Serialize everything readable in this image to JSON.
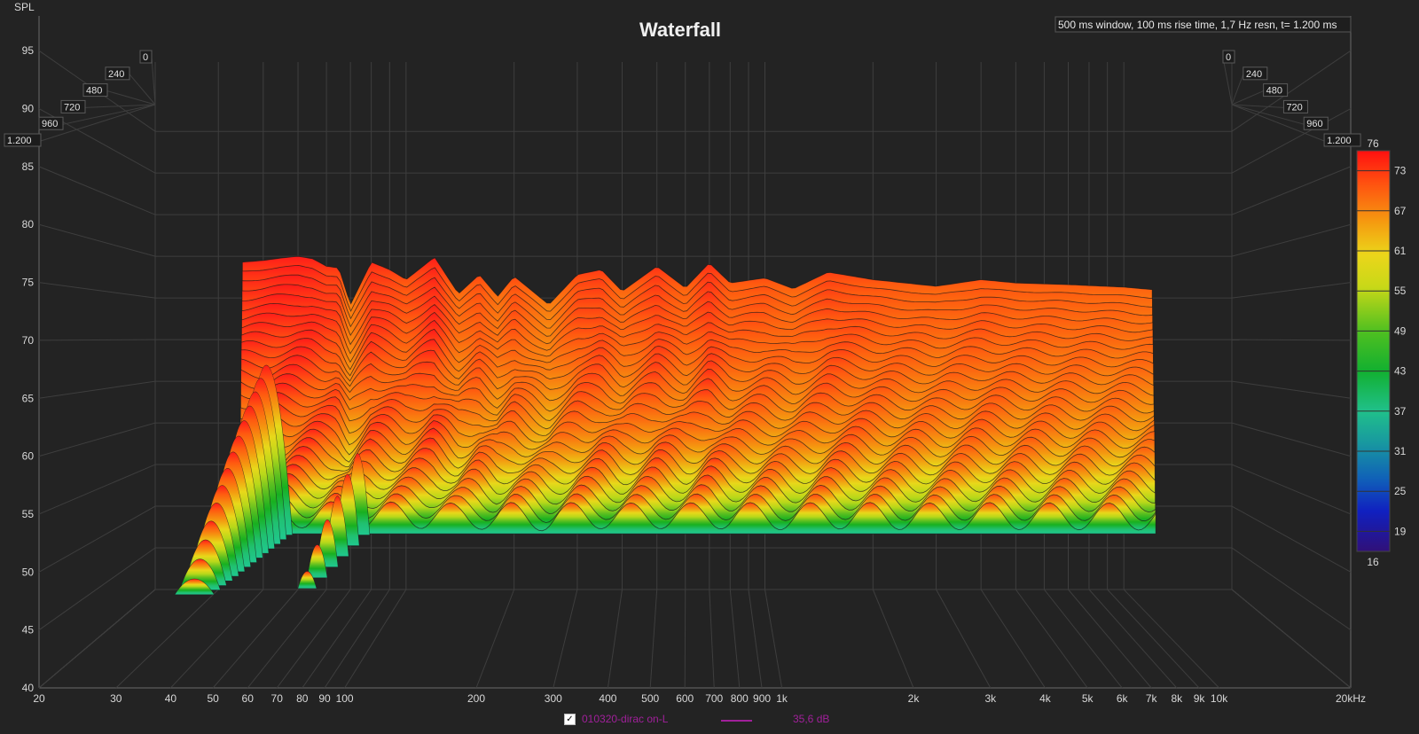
{
  "title": "Waterfall",
  "info": "500 ms window, 100 ms rise time,  1,7 Hz resn, t= 1.200 ms",
  "legend": {
    "checked": true,
    "check_mark": "✓",
    "name": "010320-dirac on-L",
    "value": "35,6 dB",
    "color": "#a0209a"
  },
  "chart_data": {
    "type": "area",
    "title": "Waterfall",
    "ylabel": "SPL",
    "xlabel": "",
    "x_scale": "log",
    "xlim": [
      20,
      20000
    ],
    "ylim": [
      40,
      98
    ],
    "x_ticks": [
      "20",
      "30",
      "40",
      "50",
      "60",
      "70",
      "80",
      "90",
      "100",
      "200",
      "300",
      "400",
      "500",
      "600",
      "700",
      "800",
      "900",
      "1k",
      "2k",
      "3k",
      "4k",
      "5k",
      "6k",
      "7k",
      "8k",
      "9k",
      "10k",
      "20kHz"
    ],
    "y_ticks": [
      "40",
      "45",
      "50",
      "55",
      "60",
      "65",
      "70",
      "75",
      "80",
      "85",
      "90",
      "95"
    ],
    "time_ticks": [
      "0",
      "240",
      "480",
      "720",
      "960",
      "1.200"
    ],
    "time_unit": "ms",
    "colorbar": {
      "ticks": [
        "76",
        "73",
        "67",
        "61",
        "55",
        "49",
        "43",
        "37",
        "31",
        "25",
        "19",
        "16"
      ],
      "min": 16,
      "max": 76
    },
    "front_slice": {
      "time": 0,
      "freq": [
        35,
        40,
        45,
        50,
        55,
        60,
        65,
        70,
        80,
        90,
        100,
        110,
        120,
        140,
        160,
        180,
        200,
        250,
        300,
        350,
        400,
        500,
        600,
        700,
        800,
        1000,
        1200,
        1500,
        2000,
        3000,
        4000,
        5000,
        7000,
        10000,
        12000
      ],
      "spl": [
        79.3,
        79.5,
        79.8,
        80,
        79.7,
        78.8,
        78.6,
        74.2,
        79.3,
        78.4,
        77.2,
        78.6,
        79.9,
        75.5,
        77.8,
        75.2,
        77.6,
        74.2,
        77.8,
        78.4,
        75.8,
        78.8,
        76.2,
        79.2,
        76.8,
        77.4,
        76.1,
        78.1,
        77.2,
        76.4,
        77.2,
        76.8,
        76.6,
        76.3,
        76
      ]
    },
    "floor_db": 47
  }
}
